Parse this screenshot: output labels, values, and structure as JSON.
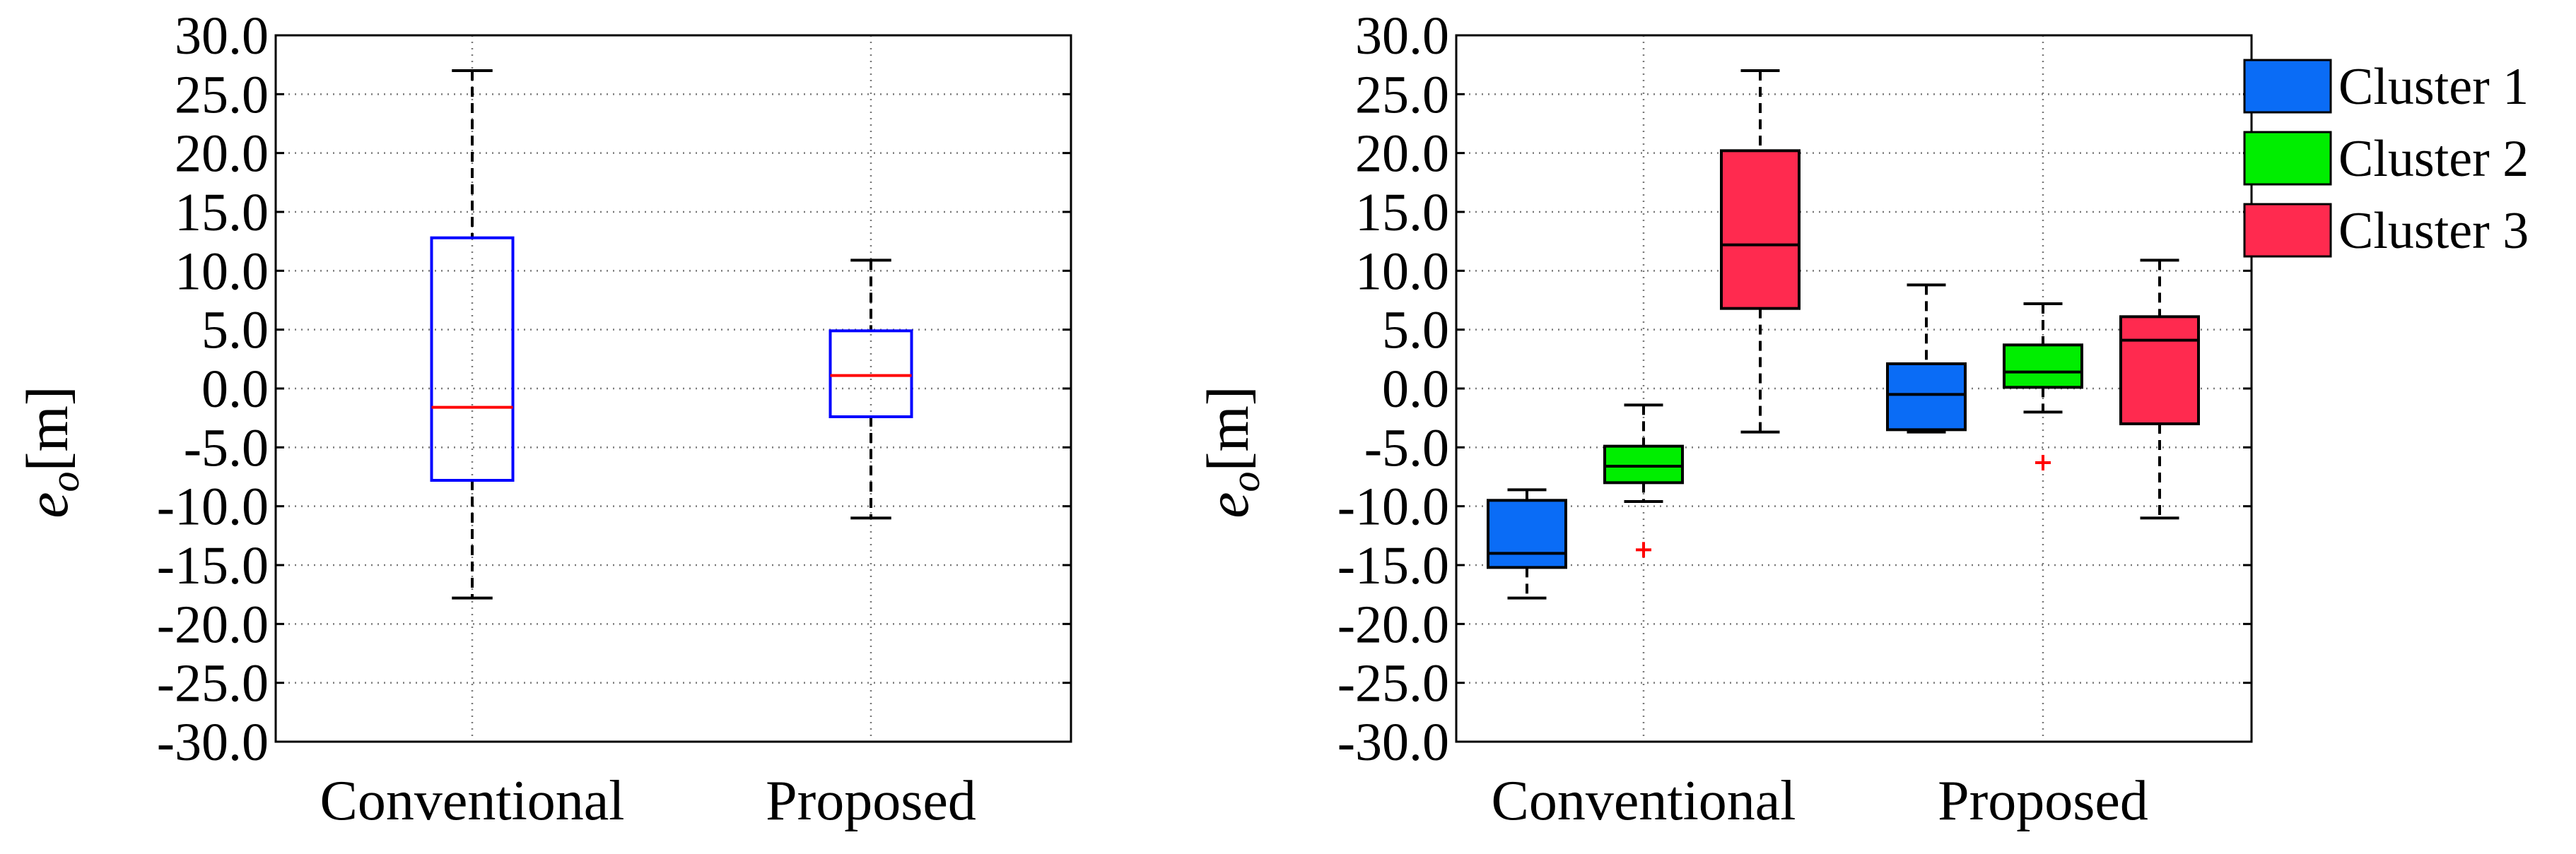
{
  "chart_data": [
    {
      "type": "box",
      "ylabel": "e",
      "ylabel_sub": "o",
      "ylabel_unit": "[m]",
      "ylim": [
        -30,
        30
      ],
      "yticks": [
        30,
        25,
        20,
        15,
        10,
        5,
        0,
        -5,
        -10,
        -15,
        -20,
        -25,
        -30
      ],
      "ytick_labels": [
        "30.0",
        "25.0",
        "20.0",
        "15.0",
        "10.0",
        "5.0",
        "0.0",
        "-5.0",
        "-10.0",
        "-15.0",
        "-20.0",
        "-25.0",
        "-30.0"
      ],
      "categories": [
        "Conventional",
        "Proposed"
      ],
      "grid": true,
      "box_color": "#0000ff",
      "median_color": "#ff0000",
      "boxes": [
        {
          "category": "Conventional",
          "whisker_low": -17.8,
          "q1": -7.8,
          "median": -1.6,
          "q3": 12.8,
          "whisker_high": 27.0,
          "outliers": []
        },
        {
          "category": "Proposed",
          "whisker_low": -11.0,
          "q1": -2.4,
          "median": 1.1,
          "q3": 4.9,
          "whisker_high": 10.9,
          "outliers": []
        }
      ]
    },
    {
      "type": "box",
      "ylabel": "e",
      "ylabel_sub": "o",
      "ylabel_unit": "[m]",
      "ylim": [
        -30,
        30
      ],
      "yticks": [
        30,
        25,
        20,
        15,
        10,
        5,
        0,
        -5,
        -10,
        -15,
        -20,
        -25,
        -30
      ],
      "ytick_labels": [
        "30.0",
        "25.0",
        "20.0",
        "15.0",
        "10.0",
        "5.0",
        "0.0",
        "-5.0",
        "-10.0",
        "-15.0",
        "-20.0",
        "-25.0",
        "-30.0"
      ],
      "categories": [
        "Conventional",
        "Proposed"
      ],
      "grid": true,
      "legend_position": "outside-top-right",
      "series": [
        {
          "name": "Cluster 1",
          "color": "#0a6cf6",
          "boxes": [
            {
              "category": "Conventional",
              "whisker_low": -17.8,
              "q1": -15.2,
              "median": -14.0,
              "q3": -9.5,
              "whisker_high": -8.6,
              "outliers": []
            },
            {
              "category": "Proposed",
              "whisker_low": -3.7,
              "q1": -3.5,
              "median": -0.5,
              "q3": 2.1,
              "whisker_high": 8.8,
              "outliers": []
            }
          ]
        },
        {
          "name": "Cluster 2",
          "color": "#00ee00",
          "boxes": [
            {
              "category": "Conventional",
              "whisker_low": -9.6,
              "q1": -8.0,
              "median": -6.6,
              "q3": -4.9,
              "whisker_high": -1.4,
              "outliers": [
                -13.7
              ]
            },
            {
              "category": "Proposed",
              "whisker_low": -2.0,
              "q1": 0.1,
              "median": 1.4,
              "q3": 3.7,
              "whisker_high": 7.2,
              "outliers": [
                -6.3
              ]
            }
          ]
        },
        {
          "name": "Cluster 3",
          "color": "#ff2a4f",
          "boxes": [
            {
              "category": "Conventional",
              "whisker_low": -3.7,
              "q1": 6.8,
              "median": 12.2,
              "q3": 20.2,
              "whisker_high": 27.0,
              "outliers": []
            },
            {
              "category": "Proposed",
              "whisker_low": -11.0,
              "q1": -3.0,
              "median": 4.1,
              "q3": 6.1,
              "whisker_high": 10.9,
              "outliers": []
            }
          ]
        }
      ]
    }
  ]
}
